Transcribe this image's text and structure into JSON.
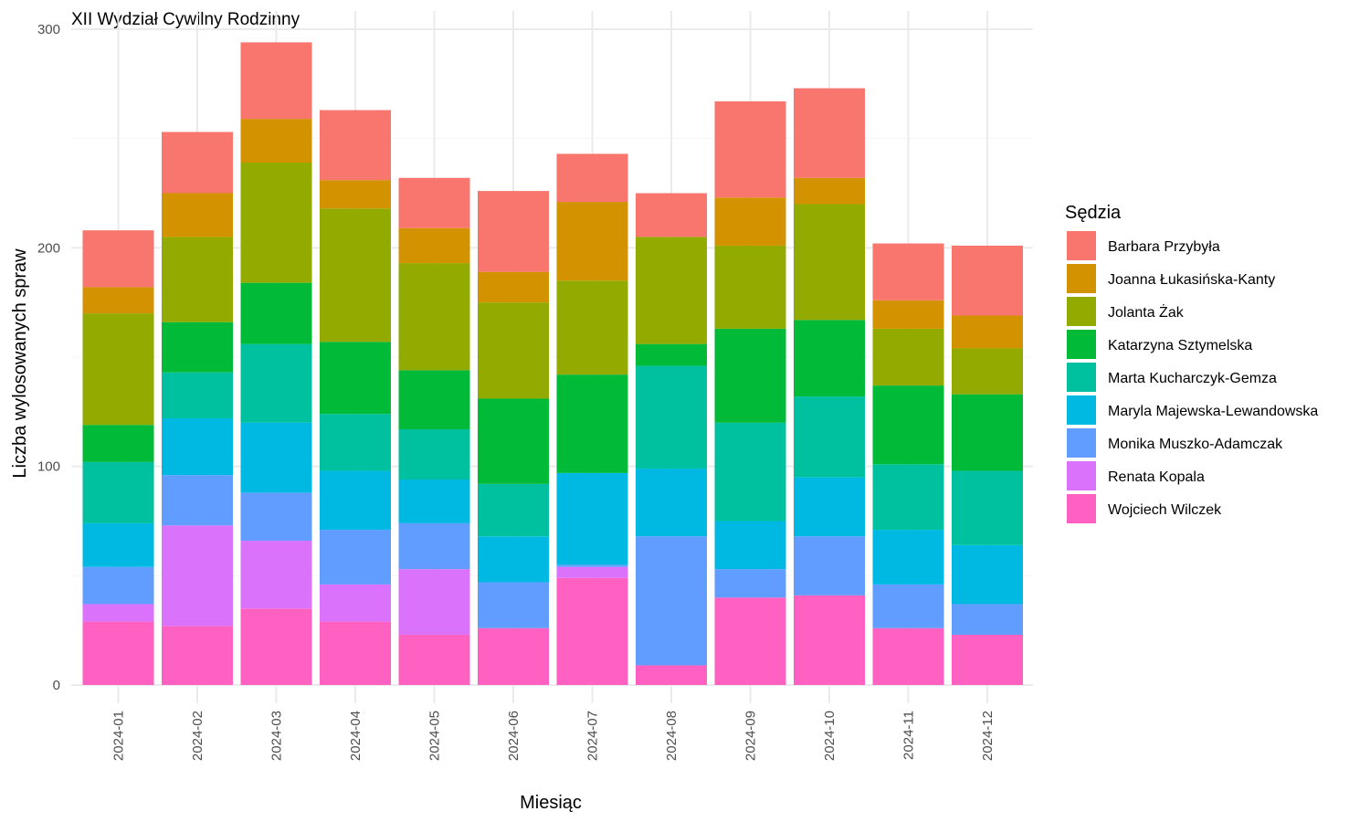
{
  "chart_data": {
    "type": "bar",
    "stacked": true,
    "title": "XII Wydział Cywilny Rodzinny",
    "xlabel": "Miesiąc",
    "ylabel": "Liczba wylosowanych spraw",
    "ylim": [
      0,
      300
    ],
    "yticks": [
      0,
      100,
      200,
      300
    ],
    "grid": true,
    "legend_position": "right",
    "legend_title": "Sędzia",
    "categories": [
      "2024-01",
      "2024-02",
      "2024-03",
      "2024-04",
      "2024-05",
      "2024-06",
      "2024-07",
      "2024-08",
      "2024-09",
      "2024-10",
      "2024-11",
      "2024-12"
    ],
    "series": [
      {
        "name": "Barbara Przybyła",
        "color": "#F8766D",
        "values": [
          26,
          28,
          35,
          32,
          23,
          37,
          22,
          20,
          44,
          41,
          26,
          32
        ]
      },
      {
        "name": "Joanna Łukasińska-Kanty",
        "color": "#D39200",
        "values": [
          12,
          20,
          20,
          13,
          16,
          14,
          36,
          0,
          22,
          12,
          13,
          15
        ]
      },
      {
        "name": "Jolanta Żak",
        "color": "#93AA00",
        "values": [
          51,
          39,
          55,
          61,
          49,
          44,
          43,
          49,
          38,
          53,
          26,
          21
        ]
      },
      {
        "name": "Katarzyna Sztymelska",
        "color": "#00BA38",
        "values": [
          17,
          23,
          28,
          33,
          27,
          39,
          45,
          10,
          43,
          35,
          36,
          35
        ]
      },
      {
        "name": "Marta Kucharczyk-Gemza",
        "color": "#00C19F",
        "values": [
          28,
          21,
          36,
          26,
          23,
          24,
          0,
          47,
          45,
          37,
          30,
          34
        ]
      },
      {
        "name": "Maryla Majewska-Lewandowska",
        "color": "#00B9E3",
        "values": [
          20,
          26,
          32,
          27,
          20,
          21,
          42,
          31,
          22,
          27,
          25,
          27
        ]
      },
      {
        "name": "Monika Muszko-Adamczak",
        "color": "#619CFF",
        "values": [
          17,
          23,
          22,
          25,
          21,
          21,
          1,
          59,
          13,
          27,
          20,
          14
        ]
      },
      {
        "name": "Renata Kopala",
        "color": "#DB72FB",
        "values": [
          8,
          46,
          31,
          17,
          30,
          0,
          5,
          0,
          0,
          0,
          0,
          0
        ]
      },
      {
        "name": "Wojciech Wilczek",
        "color": "#FF61C3",
        "values": [
          29,
          27,
          35,
          29,
          23,
          26,
          49,
          9,
          40,
          41,
          26,
          23
        ]
      }
    ]
  }
}
